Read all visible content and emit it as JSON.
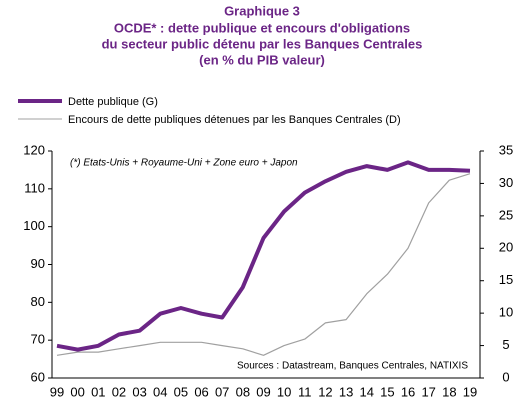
{
  "chart_data": {
    "type": "line",
    "title": [
      "Graphique 3",
      "OCDE* : dette publique et encours d'obligations",
      "du secteur public détenu par les Banques Centrales",
      "(en % du PIB valeur)"
    ],
    "annotation": "(*) Etats-Unis + Royaume-Uni  + Zone euro + Japon",
    "source": "Sources : Datastream,  Banques  Centrales, NATIXIS",
    "categories": [
      "99",
      "00",
      "01",
      "02",
      "03",
      "04",
      "05",
      "06",
      "07",
      "08",
      "09",
      "10",
      "11",
      "12",
      "13",
      "14",
      "15",
      "16",
      "17",
      "18",
      "19"
    ],
    "series": [
      {
        "name": "Dette publique (G)",
        "color": "#6b2586",
        "axis": "y",
        "values": [
          68.5,
          67.5,
          68.5,
          71.5,
          72.5,
          77,
          78.5,
          77,
          76,
          84,
          97,
          104,
          109,
          112,
          114.5,
          116,
          115,
          117,
          115,
          115,
          114.8
        ]
      },
      {
        "name": "Encours de dette publiques détenues par les Banques Centrales (D)",
        "color": "#a0a0a0",
        "axis": "y2",
        "values": [
          3.5,
          4,
          4,
          4.5,
          5,
          5.5,
          5.5,
          5.5,
          5,
          4.5,
          3.5,
          5,
          6,
          8.5,
          9,
          13,
          16,
          20,
          27,
          30.5,
          31.5
        ]
      }
    ],
    "ylim": [
      60,
      120
    ],
    "yticks": [
      60,
      70,
      80,
      90,
      100,
      110,
      120
    ],
    "y2lim": [
      0,
      35
    ],
    "y2ticks": [
      0,
      5,
      10,
      15,
      20,
      25,
      30,
      35
    ]
  }
}
